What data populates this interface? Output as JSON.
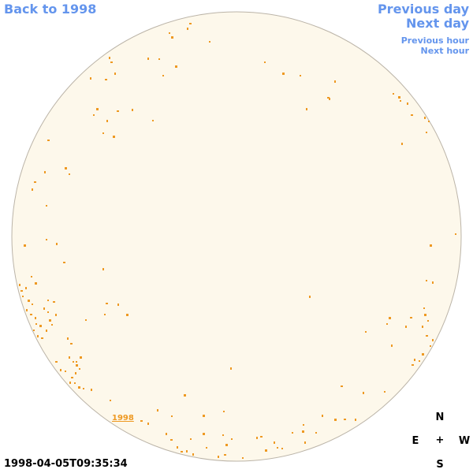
{
  "navigation": {
    "back_label": "Back to 1998",
    "previous_day_label": "Previous day",
    "next_day_label": "Next day",
    "previous_hour_label": "Previous hour",
    "next_hour_label": "Next hour"
  },
  "sun_image": {
    "year_link_label": "1998",
    "disk_color": "#fdf8eb",
    "limb_color": "#bbb4a8",
    "region_color": "#ee9922"
  },
  "compass": {
    "north": "N",
    "south": "S",
    "east": "E",
    "west": "W",
    "center": "+"
  },
  "timestamp": "1998-04-05T09:35:34"
}
